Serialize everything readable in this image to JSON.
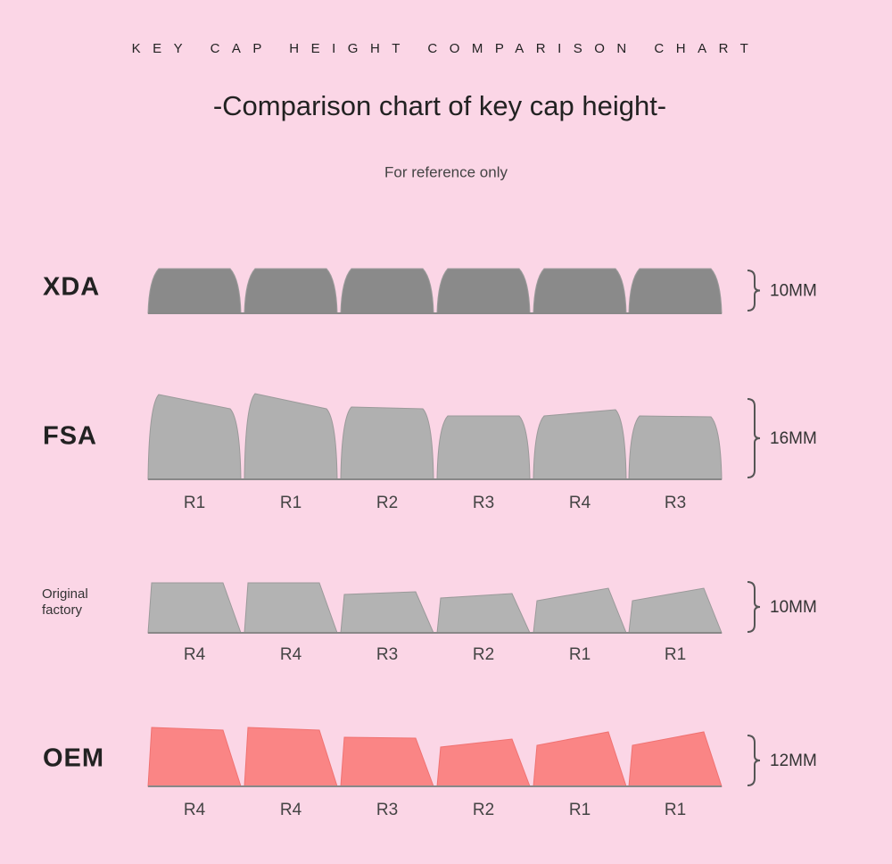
{
  "header": {
    "banner": "KEY CAP HEIGHT COMPARISON CHART",
    "title": "-Comparison chart of key cap height-",
    "subtitle": "For reference only"
  },
  "profiles": [
    {
      "name": "XDA",
      "height": "10MM"
    },
    {
      "name": "FSA",
      "height": "16MM",
      "rows": [
        "R1",
        "R1",
        "R2",
        "R3",
        "R4",
        "R3"
      ]
    },
    {
      "name": "Original factory",
      "height": "10MM",
      "rows": [
        "R4",
        "R4",
        "R3",
        "R2",
        "R1",
        "R1"
      ]
    },
    {
      "name": "OEM",
      "height": "12MM",
      "rows": [
        "R4",
        "R4",
        "R3",
        "R2",
        "R1",
        "R1"
      ]
    }
  ]
}
